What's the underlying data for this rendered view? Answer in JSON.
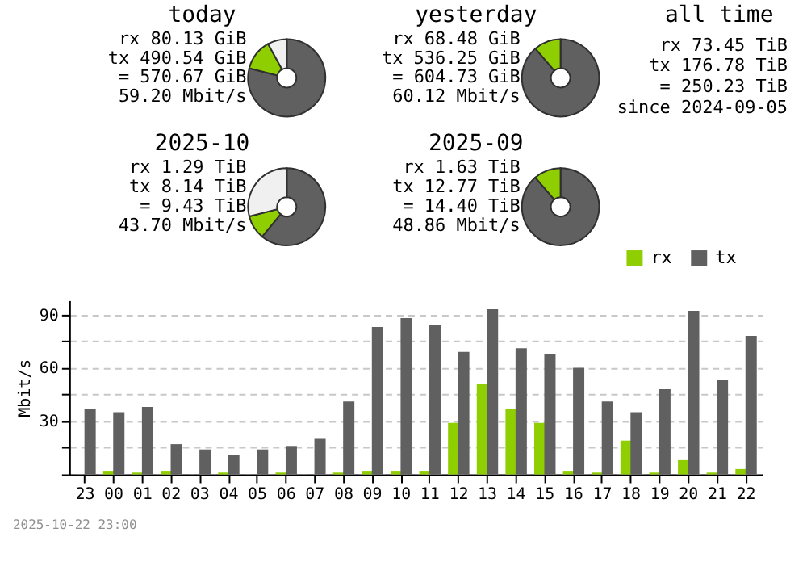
{
  "chart_data": [
    {
      "type": "donut",
      "title": "today",
      "categories": [
        null,
        null,
        null
      ],
      "values": [
        79,
        13,
        8
      ],
      "colors": [
        "#606060",
        "#8fce00",
        "#f0f0f0"
      ],
      "annotations": [
        "rx 80.13 GiB",
        "tx 490.54 GiB",
        "= 570.67 GiB",
        "59.20 Mbit/s"
      ]
    },
    {
      "type": "donut",
      "title": "yesterday",
      "categories": [
        null,
        null
      ],
      "values": [
        88.7,
        11.3
      ],
      "colors": [
        "#606060",
        "#8fce00"
      ],
      "annotations": [
        "rx 68.48 GiB",
        "tx 536.25 GiB",
        "= 604.73 GiB",
        "60.12 Mbit/s"
      ]
    },
    {
      "type": "other",
      "title": "all time",
      "annotations": [
        "rx 73.45 TiB",
        "tx 176.78 TiB",
        "= 250.23 TiB",
        "since 2024-09-05"
      ]
    },
    {
      "type": "donut",
      "title": "2025-10",
      "categories": [
        null,
        null,
        null
      ],
      "values": [
        61,
        10,
        29
      ],
      "colors": [
        "#606060",
        "#8fce00",
        "#f0f0f0"
      ],
      "annotations": [
        "rx 1.29 TiB",
        "tx 8.14 TiB",
        "= 9.43 TiB",
        "43.70 Mbit/s"
      ]
    },
    {
      "type": "donut",
      "title": "2025-09",
      "categories": [
        null,
        null
      ],
      "values": [
        88.7,
        11.3
      ],
      "colors": [
        "#606060",
        "#8fce00"
      ],
      "annotations": [
        "rx 1.63 TiB",
        "tx 12.77 TiB",
        "= 14.40 TiB",
        "48.86 Mbit/s"
      ]
    },
    {
      "type": "bar",
      "ylabel": "Mbit/s",
      "categories": [
        "23",
        "00",
        "01",
        "02",
        "03",
        "04",
        "05",
        "06",
        "07",
        "08",
        "09",
        "10",
        "11",
        "12",
        "13",
        "14",
        "15",
        "16",
        "17",
        "18",
        "19",
        "20",
        "21",
        "22"
      ],
      "series": [
        {
          "name": "rx",
          "color": "#8fce00",
          "values": [
            0,
            2,
            1,
            2,
            0,
            1,
            0,
            1,
            0,
            1,
            2,
            2,
            2,
            29,
            51,
            37,
            29,
            2,
            1,
            19,
            1,
            8,
            1,
            3
          ]
        },
        {
          "name": "tx",
          "color": "#606060",
          "values": [
            37,
            35,
            38,
            17,
            14,
            11,
            14,
            16,
            20,
            41,
            83,
            88,
            84,
            69,
            93,
            71,
            68,
            60,
            41,
            35,
            48,
            92,
            53,
            78
          ]
        }
      ],
      "ylim": [
        0,
        98
      ],
      "yticks": [
        {
          "value": 0,
          "label": null
        },
        {
          "value": 15,
          "label": null
        },
        30,
        {
          "value": 45,
          "label": null
        },
        60,
        {
          "value": 75,
          "label": null
        },
        90
      ],
      "grid": "y",
      "legend": "top right",
      "annotations": [
        "2025-10-22 23:00"
      ]
    }
  ]
}
